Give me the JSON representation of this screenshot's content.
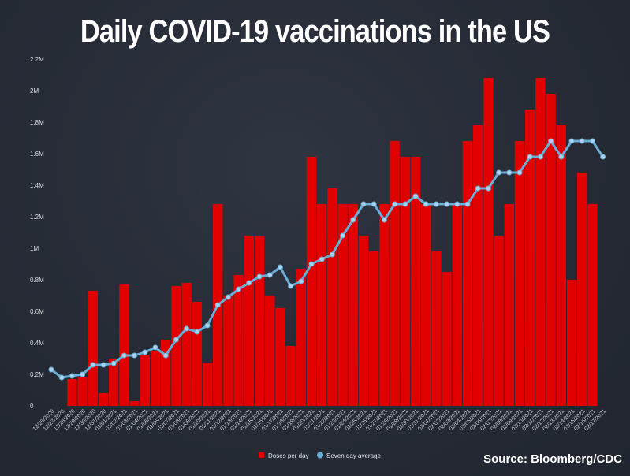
{
  "title": "Daily COVID-19 vaccinations in the US",
  "source": "Source: Bloomberg/CDC",
  "colors": {
    "bar": "#e00000",
    "line": "#6aaed6",
    "point": "#a9d3ee",
    "background": "#262b36"
  },
  "chart_data": {
    "type": "bar",
    "title": "Daily COVID-19 vaccinations in the US",
    "xlabel": "",
    "ylabel": "",
    "ylim": [
      0,
      2200000
    ],
    "grid": false,
    "legend_position": "bottom-center",
    "y_ticks": [
      "0",
      "0.2M",
      "0.4M",
      "0.6M",
      "0.8M",
      "1M",
      "1.2M",
      "1.4M",
      "1.6M",
      "1.8M",
      "2M",
      "2.2M"
    ],
    "categories": [
      "12/26/2020",
      "12/27/2020",
      "12/28/2020",
      "12/29/2020",
      "12/30/2020",
      "12/31/2020",
      "01/01/2021",
      "01/02/2021",
      "01/03/2021",
      "01/04/2021",
      "01/05/2021",
      "01/06/2021",
      "01/07/2021",
      "01/08/2021",
      "01/09/2021",
      "01/10/2021",
      "01/11/2021",
      "01/12/2021",
      "01/13/2021",
      "01/14/2021",
      "01/15/2021",
      "01/16/2021",
      "01/17/2021",
      "01/18/2021",
      "01/19/2021",
      "01/20/2021",
      "01/21/2021",
      "01/22/2021",
      "01/23/2021",
      "01/24/2021",
      "01/25/2021",
      "01/26/2021",
      "01/27/2021",
      "01/28/2021",
      "01/29/2021",
      "01/30/2021",
      "01/31/2021",
      "02/01/2021",
      "02/02/2021",
      "02/03/2021",
      "02/04/2021",
      "02/05/2021",
      "02/06/2021",
      "02/07/2021",
      "02/08/2021",
      "02/09/2021",
      "02/10/2021",
      "02/11/2021",
      "02/12/2021",
      "02/13/2021",
      "02/14/2021",
      "02/15/2021",
      "02/16/2021",
      "02/17/2021"
    ],
    "series": [
      {
        "name": "Doses per day",
        "type": "bar",
        "values": [
          0,
          0,
          170000,
          180000,
          730000,
          80000,
          300000,
          770000,
          30000,
          320000,
          350000,
          420000,
          760000,
          780000,
          660000,
          270000,
          1280000,
          700000,
          830000,
          1080000,
          1080000,
          700000,
          620000,
          380000,
          870000,
          1580000,
          1280000,
          1380000,
          1280000,
          1280000,
          1080000,
          980000,
          1280000,
          1680000,
          1580000,
          1580000,
          1280000,
          980000,
          850000,
          1280000,
          1680000,
          1780000,
          2080000,
          1080000,
          1280000,
          1680000,
          1880000,
          2080000,
          1980000,
          1780000,
          800000,
          1480000,
          1280000,
          0
        ]
      },
      {
        "name": "Seven day average",
        "type": "line",
        "values": [
          230000,
          180000,
          190000,
          200000,
          260000,
          260000,
          270000,
          320000,
          320000,
          340000,
          370000,
          320000,
          420000,
          490000,
          470000,
          510000,
          640000,
          690000,
          740000,
          780000,
          820000,
          830000,
          880000,
          760000,
          790000,
          900000,
          930000,
          960000,
          1080000,
          1180000,
          1280000,
          1280000,
          1180000,
          1280000,
          1280000,
          1330000,
          1280000,
          1280000,
          1280000,
          1280000,
          1280000,
          1380000,
          1380000,
          1480000,
          1480000,
          1480000,
          1580000,
          1580000,
          1680000,
          1580000,
          1680000,
          1680000,
          1680000,
          1580000
        ]
      }
    ]
  }
}
